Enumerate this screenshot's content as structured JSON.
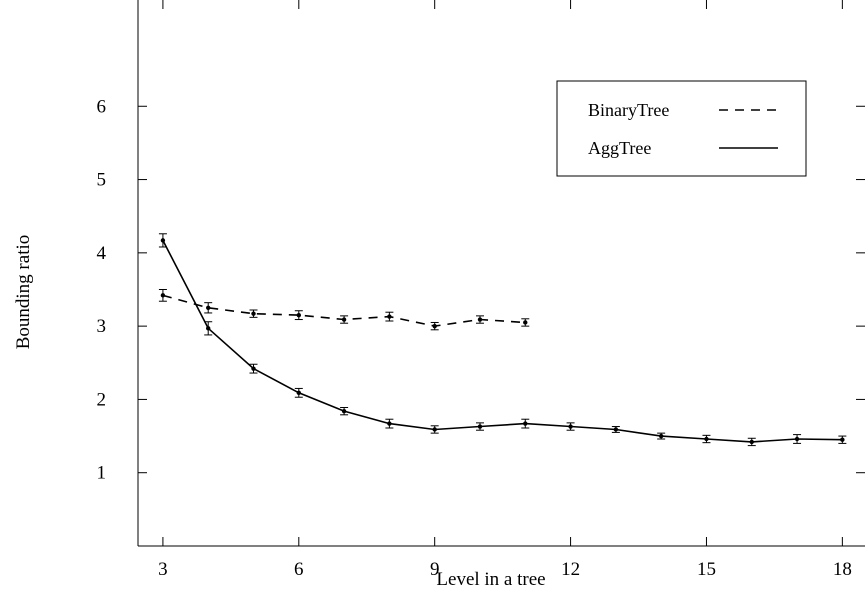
{
  "chart_data": {
    "type": "line",
    "title": "",
    "xlabel": "Level in a tree",
    "ylabel": "Bounding ratio",
    "xlim": [
      2.45,
      18.5
    ],
    "ylim": [
      0,
      7.45
    ],
    "xticks": [
      3,
      6,
      9,
      12,
      15,
      18
    ],
    "yticks": [
      1,
      2,
      3,
      4,
      5,
      6
    ],
    "grid": false,
    "legend": "top-right",
    "error_bars": true,
    "series": [
      {
        "name": "BinaryTree",
        "style": "dashed",
        "color": "#000000",
        "x": [
          3,
          4,
          5,
          6,
          7,
          8,
          9,
          10,
          11
        ],
        "values": [
          3.42,
          3.25,
          3.17,
          3.15,
          3.09,
          3.13,
          3.0,
          3.09,
          3.05
        ],
        "errors": [
          0.08,
          0.07,
          0.05,
          0.06,
          0.05,
          0.06,
          0.05,
          0.05,
          0.05
        ]
      },
      {
        "name": "AggTree",
        "style": "solid",
        "color": "#000000",
        "x": [
          3,
          4,
          5,
          6,
          7,
          8,
          9,
          10,
          11,
          12,
          13,
          14,
          15,
          16,
          17,
          18
        ],
        "values": [
          4.17,
          2.97,
          2.42,
          2.09,
          1.84,
          1.67,
          1.59,
          1.63,
          1.67,
          1.63,
          1.59,
          1.5,
          1.46,
          1.42,
          1.46,
          1.45
        ],
        "errors": [
          0.09,
          0.09,
          0.06,
          0.06,
          0.05,
          0.06,
          0.05,
          0.05,
          0.06,
          0.05,
          0.04,
          0.04,
          0.05,
          0.05,
          0.06,
          0.05
        ]
      }
    ]
  }
}
